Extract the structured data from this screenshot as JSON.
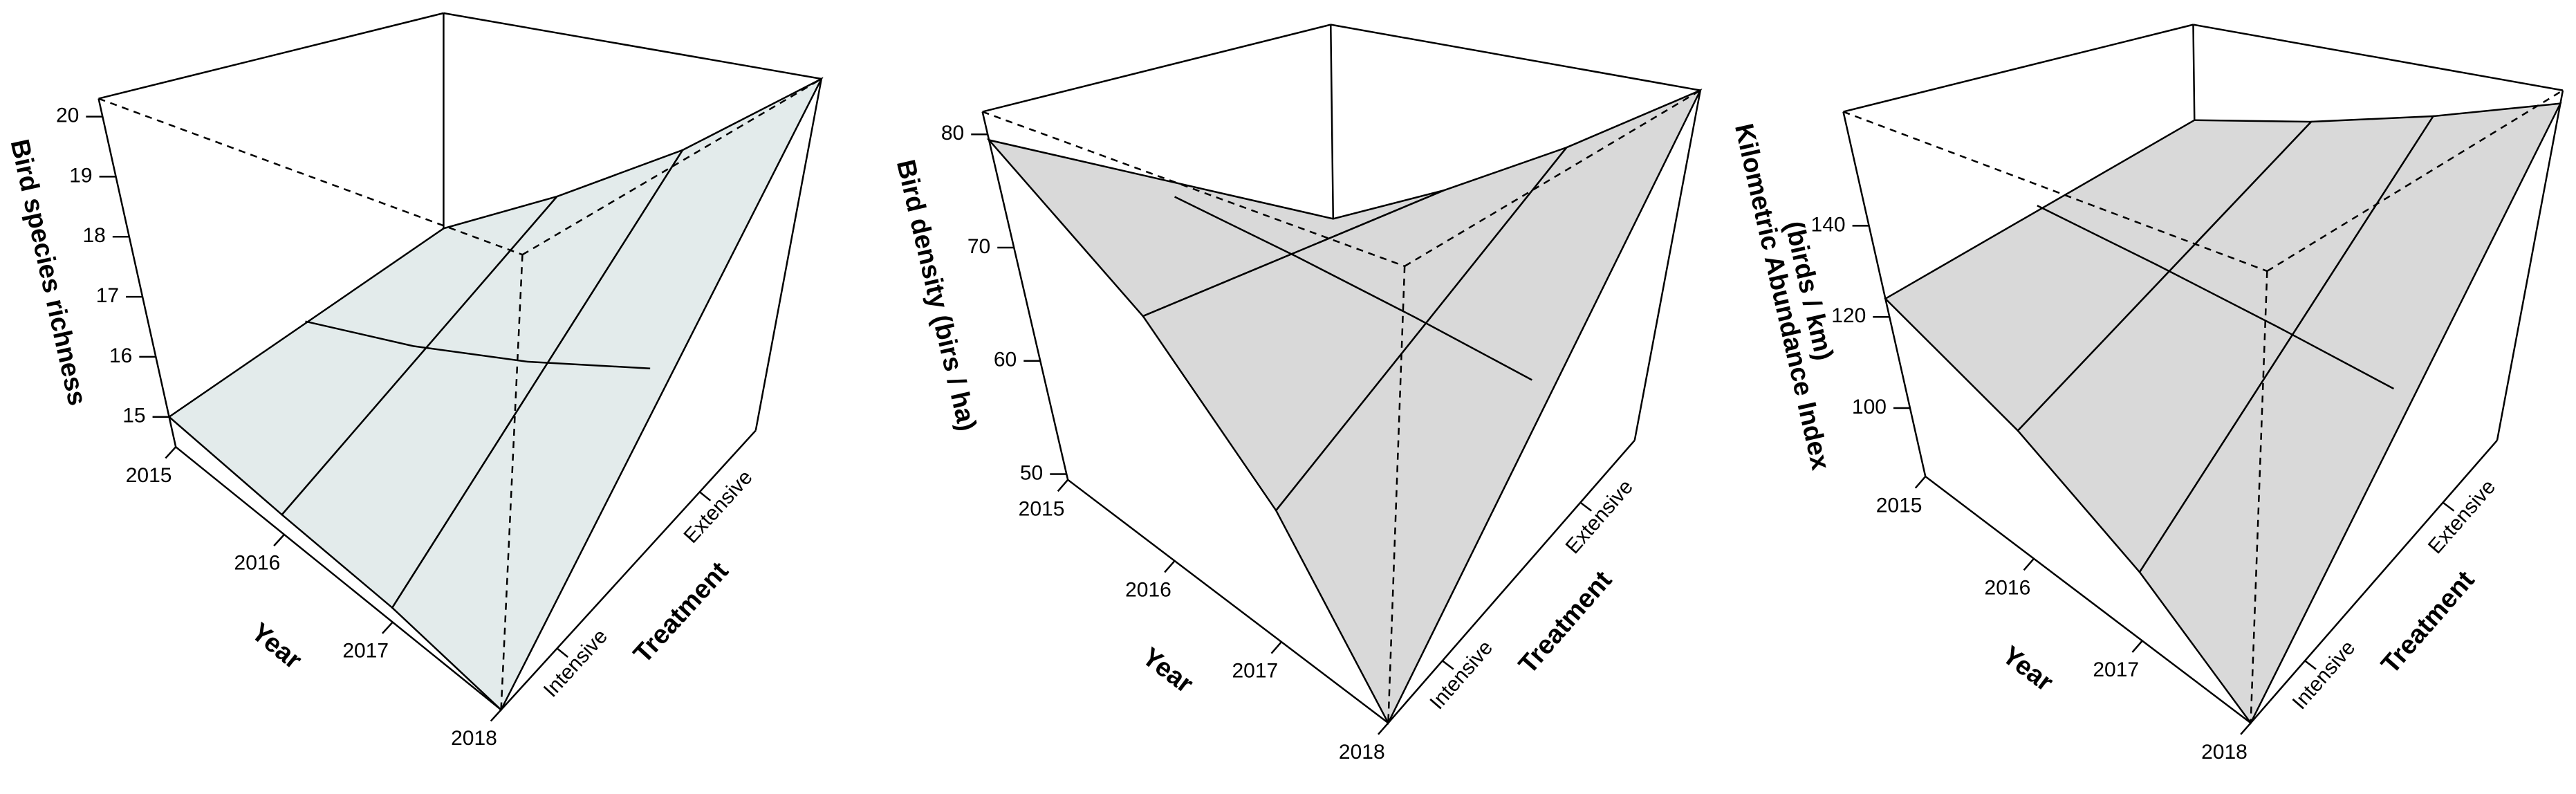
{
  "chart_data": [
    {
      "type": "surface",
      "zlabel": [
        "Bird species richness"
      ],
      "xlabel": "Year",
      "ylabel": "Treatment",
      "categories": [
        "2015",
        "2016",
        "2017",
        "2018"
      ],
      "series": [
        {
          "name": "Intensive",
          "values": [
            15.0,
            14.8,
            14.7,
            14.5
          ]
        },
        {
          "name": "Extensive",
          "values": [
            15.3,
            17.0,
            18.6,
            20.3
          ]
        }
      ],
      "zlim": [
        14.5,
        20.3
      ],
      "zticks": [
        15,
        16,
        17,
        18,
        19,
        20
      ],
      "color": "#e3ebeb"
    },
    {
      "type": "surface",
      "zlabel": [
        "Bird density (birs / ha)"
      ],
      "xlabel": "Year",
      "ylabel": "Treatment",
      "categories": [
        "2015",
        "2016",
        "2017",
        "2018"
      ],
      "series": [
        {
          "name": "Intensive",
          "values": [
            79.5,
            69.5,
            59.5,
            49.5
          ]
        },
        {
          "name": "Extensive",
          "values": [
            58,
            66,
            74,
            82
          ]
        }
      ],
      "zlim": [
        49.5,
        82
      ],
      "zticks": [
        50,
        60,
        70,
        80
      ],
      "color": "#d9d9d9"
    },
    {
      "type": "surface",
      "zlabel": [
        "Kilometric Abundance Index",
        "(birds / km)"
      ],
      "xlabel": "Year",
      "ylabel": "Treatment",
      "categories": [
        "2015",
        "2016",
        "2017",
        "2018"
      ],
      "series": [
        {
          "name": "Intensive",
          "values": [
            124,
            111,
            98,
            85
          ]
        },
        {
          "name": "Extensive",
          "values": [
            135,
            144,
            153,
            162
          ]
        }
      ],
      "zlim": [
        85,
        165
      ],
      "zticks": [
        100,
        120,
        140
      ],
      "color": "#d9d9d9"
    }
  ]
}
